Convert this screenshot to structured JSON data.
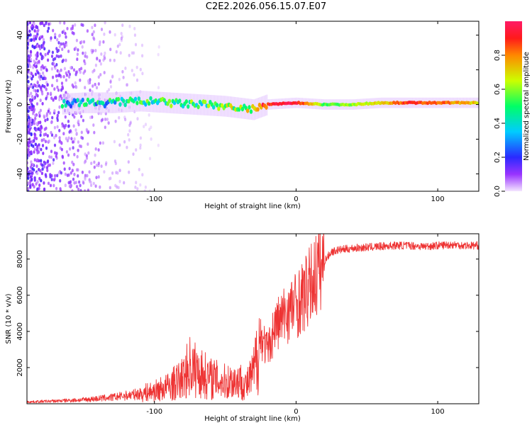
{
  "title": "C2E2.2026.056.15.07.E07",
  "chart_data": [
    {
      "type": "heatmap",
      "xlabel": "Height of straight line (km)",
      "ylabel": "Frequency (Hz)",
      "xlim": [
        -190,
        129
      ],
      "ylim": [
        -50,
        48
      ],
      "xticks": [
        -100,
        0,
        100
      ],
      "xtick_labels": [
        "-100",
        "0",
        "100"
      ],
      "yticks": [
        -40,
        -20,
        0,
        20,
        40
      ],
      "ytick_labels": [
        "-40",
        "-20",
        "0",
        "20",
        "40"
      ],
      "ridge": {
        "x": [
          -170,
          -150,
          -130,
          -110,
          -90,
          -70,
          -50,
          -40,
          -30,
          -20,
          0,
          20,
          40,
          60,
          80,
          100,
          129
        ],
        "freq": [
          0,
          1,
          1,
          2,
          1,
          0,
          -1,
          -2,
          -3,
          0,
          1,
          0,
          0,
          1,
          1,
          1,
          1
        ],
        "amplitude": [
          0.3,
          0.35,
          0.35,
          0.4,
          0.45,
          0.45,
          0.5,
          0.55,
          0.6,
          0.9,
          0.95,
          0.55,
          0.6,
          0.7,
          0.9,
          0.85,
          0.7
        ]
      },
      "colorbar": {
        "label": "Normalized spectral amplitude",
        "range": [
          0,
          1
        ],
        "ticks": [
          0.0,
          0.2,
          0.4,
          0.6,
          0.8
        ],
        "tick_labels": [
          "0.0",
          "0.2",
          "0.4",
          "0.6",
          "0.8"
        ]
      }
    },
    {
      "type": "line",
      "xlabel": "Height of straight line (km)",
      "ylabel": "SNR (10 * v/v)",
      "xlim": [
        -190,
        129
      ],
      "ylim": [
        0,
        9400
      ],
      "xticks": [
        -100,
        0,
        100
      ],
      "xtick_labels": [
        "-100",
        "0",
        "100"
      ],
      "yticks": [
        2000,
        4000,
        6000,
        8000
      ],
      "ytick_labels": [
        "2000",
        "4000",
        "6000",
        "8000"
      ],
      "series": [
        {
          "name": "SNR",
          "color": "#ee3333",
          "x": [
            -190,
            -170,
            -150,
            -130,
            -110,
            -100,
            -90,
            -80,
            -75,
            -70,
            -60,
            -50,
            -40,
            -35,
            -30,
            -25,
            -20,
            -15,
            -10,
            -5,
            0,
            5,
            10,
            15,
            20,
            25,
            30,
            40,
            50,
            60,
            70,
            80,
            90,
            100,
            110,
            120,
            129
          ],
          "values": [
            100,
            150,
            220,
            350,
            550,
            700,
            950,
            1400,
            2100,
            1800,
            1400,
            1200,
            1300,
            1000,
            1700,
            3800,
            2900,
            4300,
            4700,
            5200,
            5500,
            5900,
            6500,
            7300,
            7900,
            8400,
            8500,
            8600,
            8650,
            8700,
            8750,
            8750,
            8700,
            8750,
            8800,
            8750,
            8750
          ]
        }
      ]
    }
  ]
}
